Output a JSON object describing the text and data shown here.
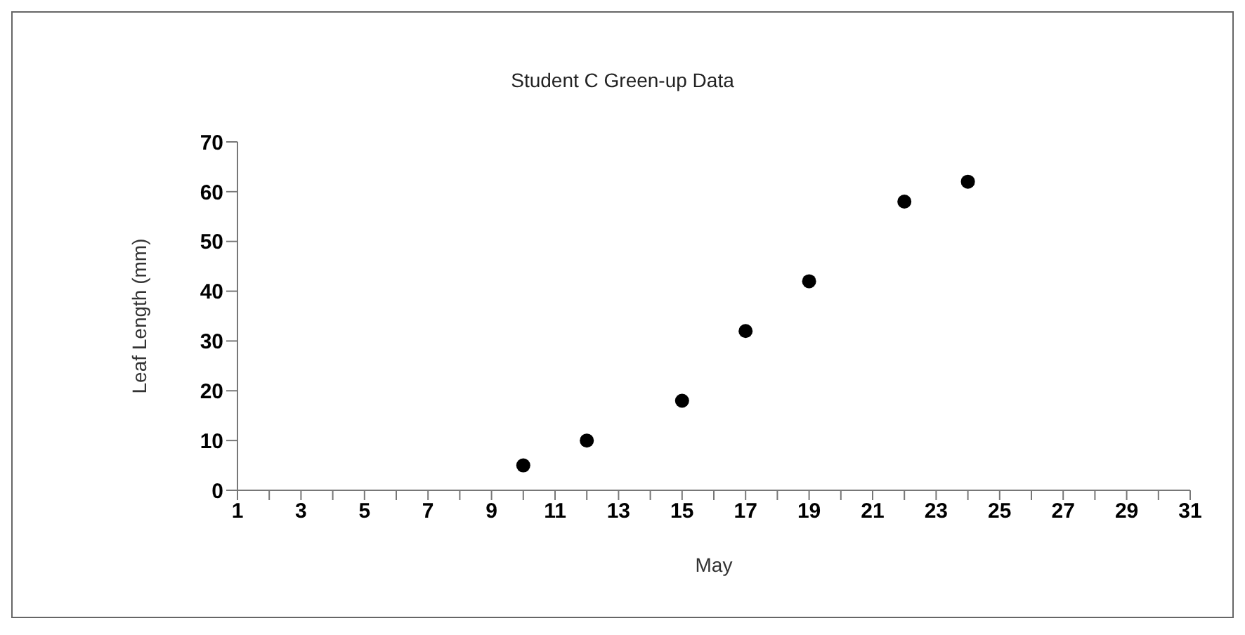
{
  "chart_data": {
    "type": "scatter",
    "title": "Student C Green-up Data",
    "xlabel": "May",
    "ylabel": "Leaf Length (mm)",
    "x": [
      10,
      12,
      15,
      17,
      19,
      22,
      24
    ],
    "values": [
      5,
      10,
      18,
      32,
      42,
      58,
      62
    ],
    "color": "#000000",
    "marker": "circle",
    "grid": false,
    "legend": false,
    "xlim": [
      1,
      31
    ],
    "xticks": [
      1,
      {
        "value": 2,
        "label": null
      },
      3,
      {
        "value": 4,
        "label": null
      },
      5,
      {
        "value": 6,
        "label": null
      },
      7,
      {
        "value": 8,
        "label": null
      },
      9,
      {
        "value": 10,
        "label": null
      },
      11,
      {
        "value": 12,
        "label": null
      },
      13,
      {
        "value": 14,
        "label": null
      },
      15,
      {
        "value": 16,
        "label": null
      },
      17,
      {
        "value": 18,
        "label": null
      },
      19,
      {
        "value": 20,
        "label": null
      },
      21,
      {
        "value": 22,
        "label": null
      },
      23,
      {
        "value": 24,
        "label": null
      },
      25,
      {
        "value": 26,
        "label": null
      },
      27,
      {
        "value": 28,
        "label": null
      },
      29,
      {
        "value": 30,
        "label": null
      },
      31
    ],
    "ylim": [
      0,
      70
    ],
    "yticks": [
      0,
      10,
      20,
      30,
      40,
      50,
      60,
      70
    ]
  }
}
